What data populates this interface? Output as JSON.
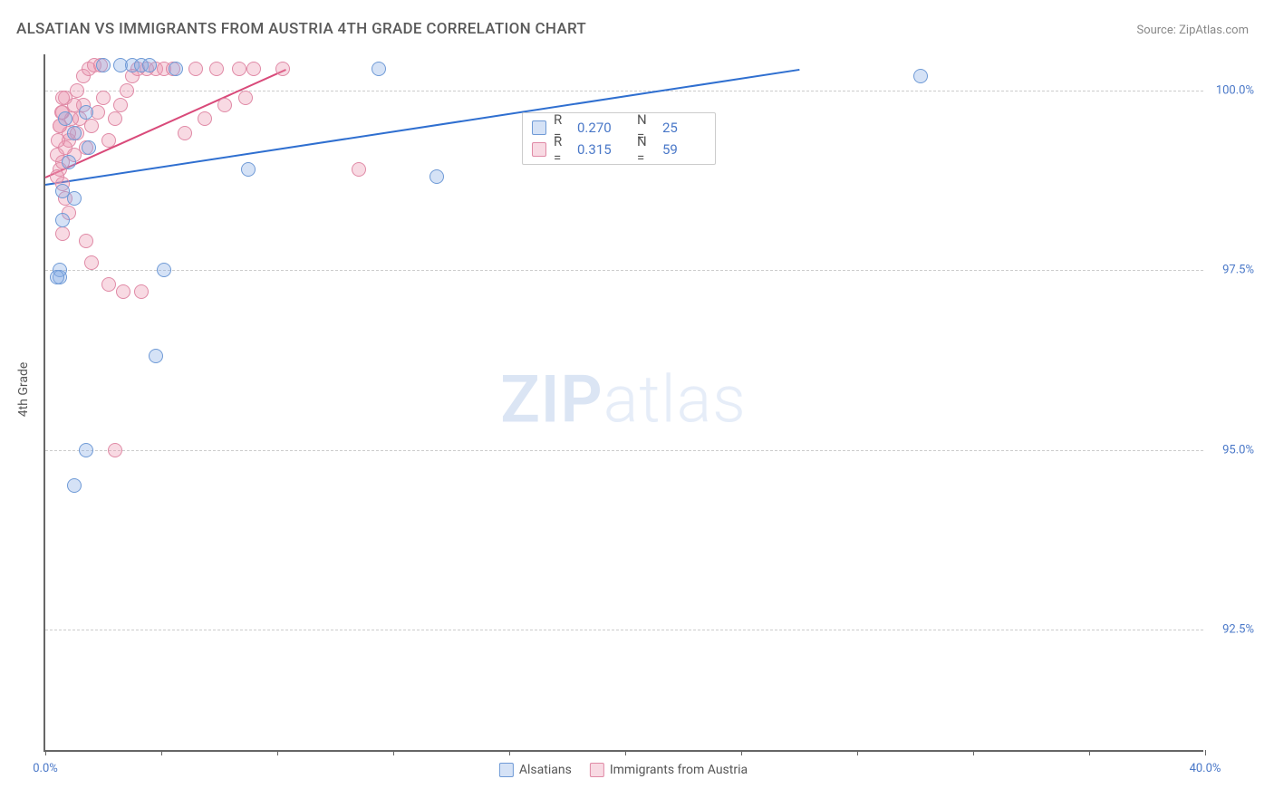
{
  "title": "ALSATIAN VS IMMIGRANTS FROM AUSTRIA 4TH GRADE CORRELATION CHART",
  "source": "Source: ZipAtlas.com",
  "ylabel": "4th Grade",
  "watermark": {
    "left": "ZIP",
    "right": "atlas"
  },
  "colors": {
    "series1_fill": "rgba(136,172,230,0.35)",
    "series1_stroke": "#6f9ad6",
    "series2_fill": "rgba(235,150,175,0.35)",
    "series2_stroke": "#e08aa6",
    "trend1": "#2f6fd0",
    "trend2": "#d94a7a",
    "axis_text": "#4a78c8",
    "grid": "#ccc"
  },
  "chart": {
    "type": "scatter",
    "xlim": [
      0,
      40
    ],
    "ylim": [
      90.8,
      100.5
    ],
    "x_ticks_minor": [
      0,
      4,
      8,
      12,
      16,
      20,
      24,
      28,
      32,
      36,
      40
    ],
    "x_ticks_labeled": [
      {
        "v": 0,
        "label": "0.0%"
      },
      {
        "v": 40,
        "label": "40.0%"
      }
    ],
    "y_ticks": [
      {
        "v": 92.5,
        "label": "92.5%"
      },
      {
        "v": 95.0,
        "label": "95.0%"
      },
      {
        "v": 97.5,
        "label": "97.5%"
      },
      {
        "v": 100.0,
        "label": "100.0%"
      }
    ],
    "marker_radius": 8,
    "marker_border_width": 1.5
  },
  "legend": {
    "rows": [
      {
        "swatch_fill": "rgba(136,172,230,0.35)",
        "swatch_stroke": "#6f9ad6",
        "r": "0.270",
        "n": "25"
      },
      {
        "swatch_fill": "rgba(235,150,175,0.35)",
        "swatch_stroke": "#e08aa6",
        "r": "0.315",
        "n": "59"
      }
    ],
    "r_label": "R =",
    "n_label": "N ="
  },
  "bottom_legend": [
    {
      "swatch_fill": "rgba(136,172,230,0.35)",
      "swatch_stroke": "#6f9ad6",
      "label": "Alsatians"
    },
    {
      "swatch_fill": "rgba(235,150,175,0.35)",
      "swatch_stroke": "#e08aa6",
      "label": "Immigrants from Austria"
    }
  ],
  "trend_lines": [
    {
      "color": "#2f6fd0",
      "x1": 0,
      "y1": 98.7,
      "x2": 26,
      "y2": 100.3
    },
    {
      "color": "#d94a7a",
      "x1": 0,
      "y1": 98.8,
      "x2": 8.3,
      "y2": 100.3
    }
  ],
  "series1": {
    "name": "Alsatians",
    "points": [
      [
        0.6,
        98.6
      ],
      [
        1.0,
        98.5
      ],
      [
        0.8,
        99.0
      ],
      [
        1.5,
        99.2
      ],
      [
        0.6,
        98.2
      ],
      [
        0.5,
        97.5
      ],
      [
        0.5,
        97.4
      ],
      [
        0.4,
        97.4
      ],
      [
        4.1,
        97.5
      ],
      [
        3.8,
        96.3
      ],
      [
        1.4,
        95.0
      ],
      [
        1.0,
        94.5
      ],
      [
        7.0,
        98.9
      ],
      [
        13.5,
        98.8
      ],
      [
        11.5,
        100.3
      ],
      [
        4.5,
        100.3
      ],
      [
        2.0,
        100.35
      ],
      [
        2.6,
        100.35
      ],
      [
        3.0,
        100.35
      ],
      [
        3.3,
        100.35
      ],
      [
        3.6,
        100.35
      ],
      [
        1.4,
        99.7
      ],
      [
        1.0,
        99.4
      ],
      [
        0.7,
        99.6
      ],
      [
        30.2,
        100.2
      ]
    ]
  },
  "series2": {
    "name": "Immigrants from Austria",
    "points": [
      [
        0.5,
        99.5
      ],
      [
        0.6,
        99.7
      ],
      [
        0.7,
        99.9
      ],
      [
        0.8,
        99.3
      ],
      [
        1.0,
        99.1
      ],
      [
        1.1,
        99.4
      ],
      [
        1.2,
        99.6
      ],
      [
        1.3,
        99.8
      ],
      [
        1.4,
        99.2
      ],
      [
        1.6,
        99.5
      ],
      [
        1.8,
        99.7
      ],
      [
        2.0,
        99.9
      ],
      [
        2.2,
        99.3
      ],
      [
        2.4,
        99.6
      ],
      [
        2.6,
        99.8
      ],
      [
        2.8,
        100.0
      ],
      [
        3.0,
        100.2
      ],
      [
        3.2,
        100.3
      ],
      [
        3.5,
        100.3
      ],
      [
        3.8,
        100.3
      ],
      [
        4.1,
        100.3
      ],
      [
        4.4,
        100.3
      ],
      [
        5.2,
        100.3
      ],
      [
        5.9,
        100.3
      ],
      [
        6.7,
        100.3
      ],
      [
        7.2,
        100.3
      ],
      [
        8.2,
        100.3
      ],
      [
        4.8,
        99.4
      ],
      [
        5.5,
        99.6
      ],
      [
        6.2,
        99.8
      ],
      [
        6.9,
        99.9
      ],
      [
        10.8,
        98.9
      ],
      [
        0.5,
        98.9
      ],
      [
        0.6,
        98.7
      ],
      [
        0.7,
        98.5
      ],
      [
        0.8,
        98.3
      ],
      [
        0.6,
        99.0
      ],
      [
        0.7,
        99.2
      ],
      [
        0.8,
        99.4
      ],
      [
        0.9,
        99.6
      ],
      [
        1.0,
        99.8
      ],
      [
        1.1,
        100.0
      ],
      [
        1.3,
        100.2
      ],
      [
        1.5,
        100.3
      ],
      [
        1.7,
        100.35
      ],
      [
        1.9,
        100.35
      ],
      [
        1.4,
        97.9
      ],
      [
        1.6,
        97.6
      ],
      [
        2.2,
        97.3
      ],
      [
        2.7,
        97.2
      ],
      [
        3.3,
        97.2
      ],
      [
        2.4,
        95.0
      ],
      [
        0.4,
        98.8
      ],
      [
        0.4,
        99.1
      ],
      [
        0.45,
        99.3
      ],
      [
        0.5,
        99.5
      ],
      [
        0.55,
        99.7
      ],
      [
        0.6,
        99.9
      ],
      [
        0.6,
        98.0
      ]
    ]
  }
}
